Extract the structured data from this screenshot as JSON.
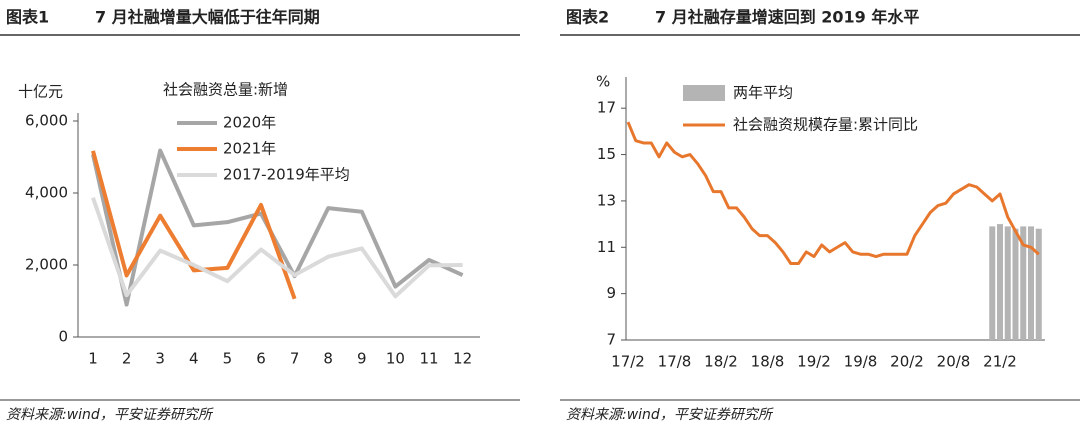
{
  "chart_data": [
    {
      "type": "line",
      "label": "图表1",
      "title": "7 月社融增量大幅低于往年同期",
      "source": "资料来源:wind，平安证券研究所",
      "y_label": "十亿元",
      "legend_title": "社会融资总量:新增",
      "categories": [
        "1",
        "2",
        "3",
        "4",
        "5",
        "6",
        "7",
        "8",
        "9",
        "10",
        "11",
        "12"
      ],
      "ylim": [
        0,
        6000
      ],
      "yticks": [
        0,
        {
          "value": 2000,
          "label": "2,000"
        },
        {
          "value": 4000,
          "label": "4,000"
        },
        {
          "value": 6000,
          "label": "6,000"
        }
      ],
      "series": [
        {
          "name": "2020年",
          "color": "#a6a6a6",
          "values": [
            5070,
            900,
            5180,
            3100,
            3190,
            3430,
            1690,
            3580,
            3480,
            1400,
            2140,
            1720
          ]
        },
        {
          "name": "2021年",
          "color": "#ed7d31",
          "values": [
            5170,
            1710,
            3370,
            1850,
            1920,
            3670,
            1060,
            null,
            null,
            null,
            null,
            null
          ]
        },
        {
          "name": "2017-2019年平均",
          "color": "#dadada",
          "values": [
            3870,
            1160,
            2400,
            2000,
            1550,
            2430,
            1720,
            2230,
            2460,
            1130,
            1990,
            2000
          ]
        }
      ]
    },
    {
      "type": "combo",
      "label": "图表2",
      "title": "7 月社融存量增速回到 2019 年水平",
      "source": "资料来源:wind，平安证券研究所",
      "y_label": "%",
      "categories": [
        "17/2",
        null,
        null,
        null,
        null,
        null,
        "17/8",
        null,
        null,
        null,
        null,
        null,
        "18/2",
        null,
        null,
        null,
        null,
        null,
        "18/8",
        null,
        null,
        null,
        null,
        null,
        "19/2",
        null,
        null,
        null,
        null,
        null,
        "19/8",
        null,
        null,
        null,
        null,
        null,
        "20/2",
        null,
        null,
        null,
        null,
        null,
        "20/8",
        null,
        null,
        null,
        null,
        null,
        "21/2",
        null,
        null,
        null,
        null,
        null
      ],
      "ylim": [
        7,
        18
      ],
      "yticks": [
        7,
        9,
        11,
        13,
        15,
        17
      ],
      "series": [
        {
          "name": "两年平均",
          "kind": "bar",
          "color": "#b4b4b4",
          "values": [
            null,
            null,
            null,
            null,
            null,
            null,
            null,
            null,
            null,
            null,
            null,
            null,
            null,
            null,
            null,
            null,
            null,
            null,
            null,
            null,
            null,
            null,
            null,
            null,
            null,
            null,
            null,
            null,
            null,
            null,
            null,
            null,
            null,
            null,
            null,
            null,
            null,
            null,
            null,
            null,
            null,
            null,
            null,
            null,
            null,
            null,
            null,
            11.9,
            12.0,
            11.9,
            11.8,
            11.9,
            11.9,
            11.8
          ]
        },
        {
          "name": "社会融资规模存量:累计同比",
          "kind": "line",
          "color": "#e8772e",
          "values": [
            16.4,
            15.6,
            15.5,
            15.5,
            14.9,
            15.5,
            15.1,
            14.9,
            15.0,
            14.6,
            14.1,
            13.4,
            13.4,
            12.7,
            12.7,
            12.3,
            11.8,
            11.5,
            11.5,
            11.2,
            10.8,
            10.3,
            10.3,
            10.8,
            10.6,
            11.1,
            10.8,
            11.0,
            11.2,
            10.8,
            10.7,
            10.7,
            10.6,
            10.7,
            10.7,
            10.7,
            10.7,
            11.5,
            12.0,
            12.5,
            12.8,
            12.9,
            13.3,
            13.5,
            13.7,
            13.6,
            13.3,
            13.0,
            13.3,
            12.3,
            11.7,
            11.1,
            11.0,
            10.7
          ]
        }
      ]
    }
  ]
}
